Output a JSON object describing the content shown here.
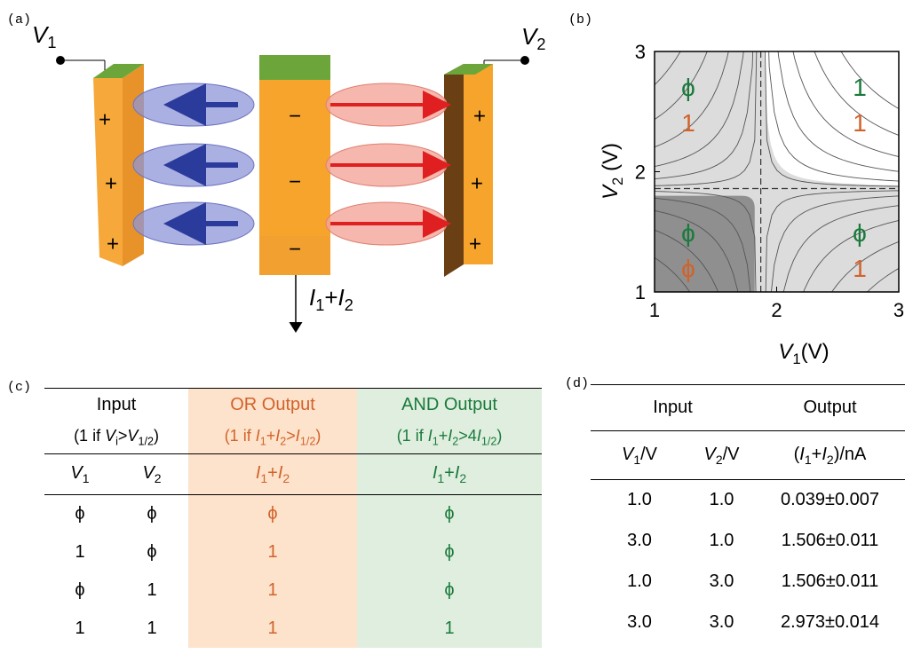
{
  "panel_labels": {
    "a": "(a)",
    "b": "(b)",
    "c": "(c)",
    "d": "(d)"
  },
  "panel_a": {
    "v1": [
      "V",
      "1"
    ],
    "v2": [
      "V",
      "2"
    ],
    "current": [
      "I",
      "1",
      "+",
      "I",
      "2"
    ],
    "left_plate": [
      "+",
      "+",
      "+"
    ],
    "middle_plate": [
      "−",
      "−",
      "−"
    ],
    "right_plate": [
      "+",
      "+",
      "+"
    ]
  },
  "panel_b": {
    "type": "contour",
    "x_label": [
      "V",
      "1",
      "(V)"
    ],
    "y_label": [
      "V",
      "2",
      " (V)"
    ],
    "xlim": [
      1,
      3
    ],
    "ylim": [
      1,
      3
    ],
    "xticks": [
      1,
      2,
      3
    ],
    "yticks": [
      1,
      2,
      3
    ],
    "threshold_x": 1.87,
    "threshold_y": 1.86,
    "quadrant_labels": {
      "top_left": [
        "ϕ",
        "1"
      ],
      "top_right": [
        "1",
        "1"
      ],
      "bottom_left": [
        "ϕ",
        "ϕ"
      ],
      "bottom_right": [
        "ϕ",
        "1"
      ]
    }
  },
  "panel_c": {
    "group_headers": [
      "Input",
      "OR Output",
      "AND Output"
    ],
    "conditions": [
      [
        "(1 if ",
        "V",
        "i",
        ">",
        "V",
        "1/2",
        ")"
      ],
      [
        "(1 if ",
        "I",
        "1",
        "+",
        "I",
        "2",
        ">",
        "I",
        "1/2",
        ")"
      ],
      [
        "(1 if ",
        "I",
        "1",
        "+",
        "I",
        "2",
        ">4",
        "I",
        "1/2",
        ")"
      ]
    ],
    "columns": [
      [
        "V",
        "1"
      ],
      [
        "V",
        "2"
      ],
      [
        "I",
        "1",
        "+",
        "I",
        "2"
      ],
      [
        "I",
        "1",
        "+",
        "I",
        "2"
      ]
    ],
    "rows": [
      [
        "ϕ",
        "ϕ",
        "ϕ",
        "ϕ"
      ],
      [
        "1",
        "ϕ",
        "1",
        "ϕ"
      ],
      [
        "ϕ",
        "1",
        "1",
        "ϕ"
      ],
      [
        "1",
        "1",
        "1",
        "1"
      ]
    ]
  },
  "panel_d": {
    "group_headers": [
      "Input",
      "Output"
    ],
    "columns": [
      [
        "V",
        "1",
        "/V"
      ],
      [
        "V",
        "2",
        "/V"
      ],
      [
        "(",
        "I",
        "1",
        "+",
        "I",
        "2",
        ")/nA"
      ]
    ],
    "rows": [
      [
        "1.0",
        "1.0",
        "0.039±0.007"
      ],
      [
        "3.0",
        "1.0",
        "1.506±0.011"
      ],
      [
        "1.0",
        "3.0",
        "1.506±0.011"
      ],
      [
        "3.0",
        "3.0",
        "2.973±0.014"
      ]
    ]
  }
}
